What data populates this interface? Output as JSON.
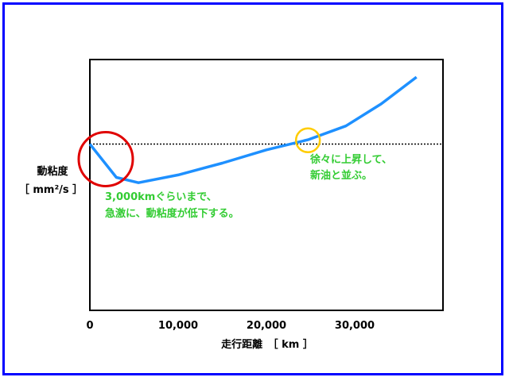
{
  "chart_data": {
    "type": "line",
    "title": "",
    "xlabel": "走行距離　［ km ］",
    "ylabel_line1": "動粘度",
    "ylabel_line2": "［ mm²/s ］",
    "xlim": [
      0,
      40000
    ],
    "ylim": [
      0,
      100
    ],
    "x_ticks": [
      {
        "value": 0,
        "label": "0"
      },
      {
        "value": 10000,
        "label": "10,000"
      },
      {
        "value": 20000,
        "label": "20,000"
      },
      {
        "value": 30000,
        "label": "30,000"
      }
    ],
    "reference_line": {
      "y": 66.3,
      "style": "dotted"
    },
    "series": [
      {
        "color": "#1e90ff",
        "x": [
          0,
          3000,
          5500,
          10000,
          15000,
          20000,
          24700,
          29000,
          33000,
          37000
        ],
        "y": [
          66.3,
          53.0,
          50.9,
          54.0,
          58.7,
          64.0,
          68.0,
          73.5,
          82.3,
          93.0
        ]
      }
    ],
    "annotations": [
      {
        "id": "drop",
        "shape": "circle",
        "color": "#e00000",
        "cx": 1800,
        "cy": 60.3,
        "r": 34
      },
      {
        "id": "rise",
        "shape": "circle",
        "color": "#ffcc00",
        "cx": 24700,
        "cy": 67.8,
        "r": 15
      }
    ],
    "notes": [
      {
        "lines": [
          "3,000kmぐらいまで、",
          "急激に、動粘度が低下する。"
        ]
      },
      {
        "lines": [
          "徐々に上昇して、",
          "新油と並ぶ。"
        ]
      }
    ]
  }
}
